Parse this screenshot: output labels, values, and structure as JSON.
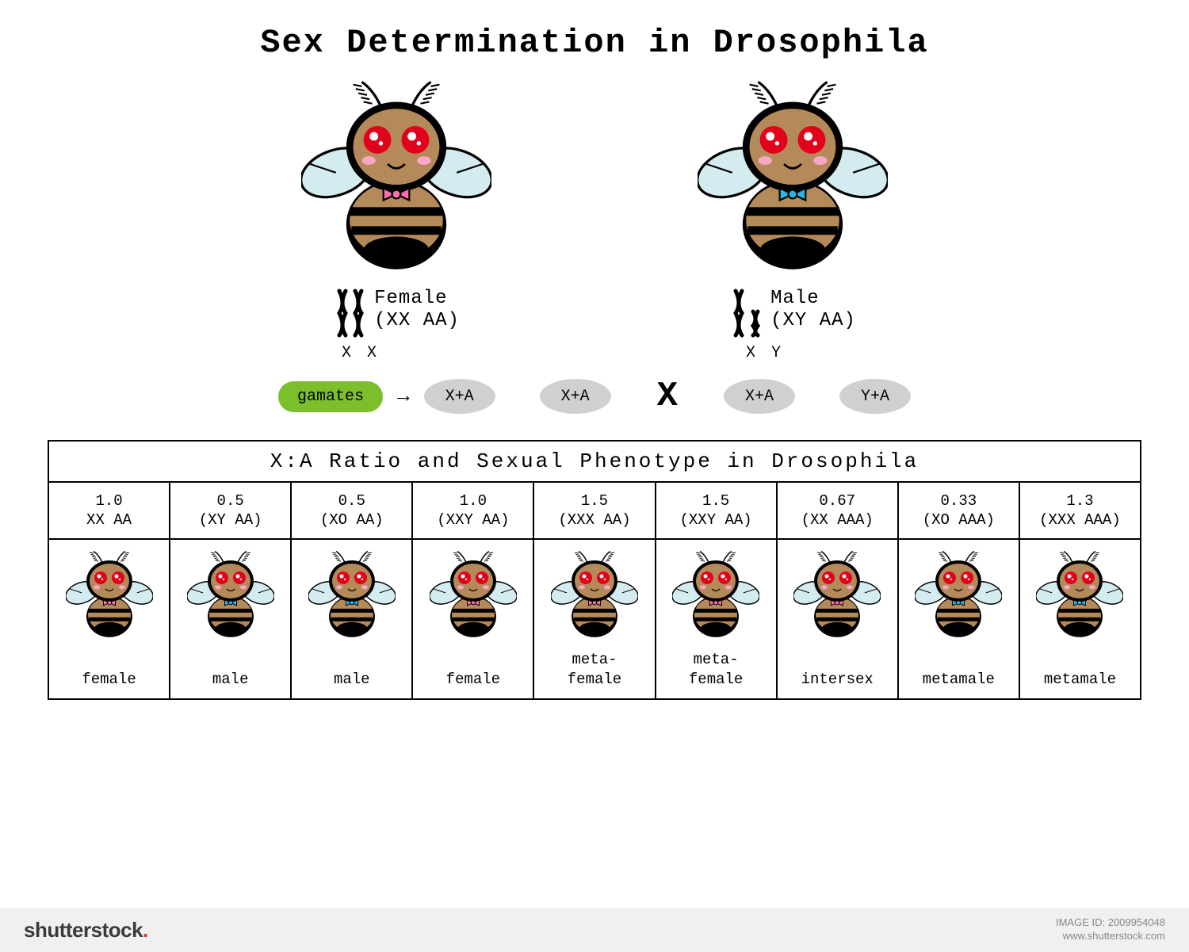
{
  "title": "Sex Determination in Drosophila",
  "parents": {
    "female": {
      "label": "Female",
      "geno": "(XX AA)",
      "chromo_sub": "X X",
      "bow_color": "#ff6fb0"
    },
    "male": {
      "label": "Male",
      "geno": "(XY AA)",
      "chromo_sub": "X Y",
      "bow_color": "#29b4e8"
    }
  },
  "gametes": {
    "label": "gamates",
    "female_gametes": [
      "X+A",
      "X+A"
    ],
    "male_gametes": [
      "X+A",
      "Y+A"
    ],
    "cross_symbol": "X",
    "arrow": "→"
  },
  "table": {
    "title": "X:A Ratio and Sexual Phenotype in Drosophila",
    "columns": [
      {
        "ratio": "1.0",
        "geno": "XX AA",
        "pheno": "female",
        "bow": "#ff6fb0"
      },
      {
        "ratio": "0.5",
        "geno": "(XY AA)",
        "pheno": "male",
        "bow": "#29b4e8"
      },
      {
        "ratio": "0.5",
        "geno": "(XO AA)",
        "pheno": "male",
        "bow": "#29b4e8"
      },
      {
        "ratio": "1.0",
        "geno": "(XXY AA)",
        "pheno": "female",
        "bow": "#ff6fb0"
      },
      {
        "ratio": "1.5",
        "geno": "(XXX AA)",
        "pheno": "meta-\nfemale",
        "bow": "#ff6fb0"
      },
      {
        "ratio": "1.5",
        "geno": "(XXY AA)",
        "pheno": "meta-\nfemale",
        "bow": "#ff6fb0"
      },
      {
        "ratio": "0.67",
        "geno": "(XX AAA)",
        "pheno": "intersex",
        "bow": "#ff6fb0"
      },
      {
        "ratio": "0.33",
        "geno": "(XO AAA)",
        "pheno": "metamale",
        "bow": "#29b4e8"
      },
      {
        "ratio": "1.3",
        "geno": "(XXX AAA)",
        "pheno": "metamale",
        "bow": "#29b4e8"
      }
    ]
  },
  "colors": {
    "body": "#b58a5a",
    "body_dark": "#8a6a42",
    "stripe": "#000000",
    "wing": "#d4ecef",
    "wing_stroke": "#000000",
    "eye": "#e3001b",
    "eye_hl": "#ffffff",
    "cheek": "#f7a6c4",
    "pill_green": "#7bbf2a",
    "pill_grey": "#d0d0d0"
  },
  "footer": {
    "logo": "shutterstock",
    "image_id": "IMAGE ID: 2009954048",
    "site": "www.shutterstock.com"
  }
}
